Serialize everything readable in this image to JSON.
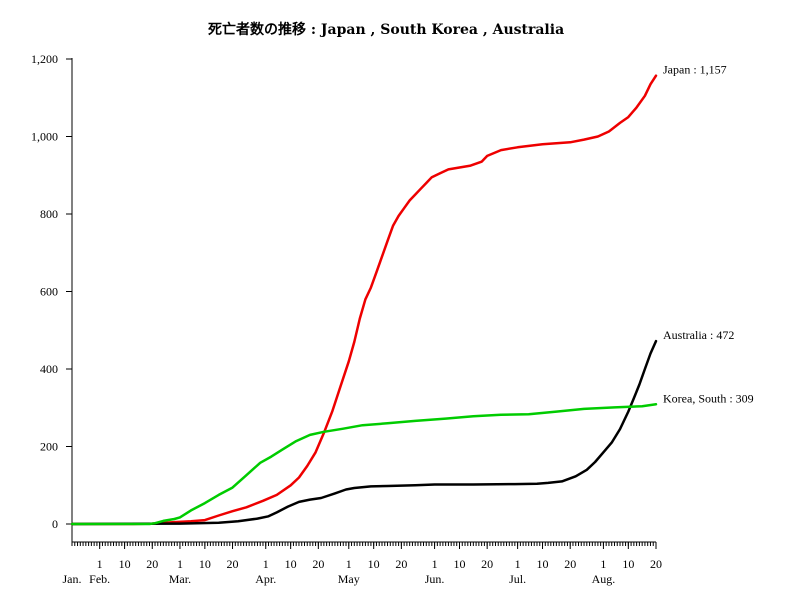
{
  "chart_data": {
    "type": "line",
    "title": "死亡者数の推移 : Japan , South Korea , Australia",
    "x_start": "2020-01-22",
    "x_end": "2020-08-20",
    "ylim": [
      0,
      1200
    ],
    "yticks": [
      0,
      200,
      400,
      600,
      800,
      1000,
      1200
    ],
    "ytick_labels": [
      "0",
      "200",
      "400",
      "600",
      "800",
      "1,000",
      "1,200"
    ],
    "month_labels": [
      {
        "date": "2020-01-22",
        "label": "Jan."
      },
      {
        "date": "2020-02-01",
        "label": "Feb."
      },
      {
        "date": "2020-03-01",
        "label": "Mar."
      },
      {
        "date": "2020-04-01",
        "label": "Apr."
      },
      {
        "date": "2020-05-01",
        "label": "May"
      },
      {
        "date": "2020-06-01",
        "label": "Jun."
      },
      {
        "date": "2020-07-01",
        "label": "Jul."
      },
      {
        "date": "2020-08-01",
        "label": "Aug."
      }
    ],
    "day_ticks": [
      {
        "date": "2020-02-01",
        "label": "1"
      },
      {
        "date": "2020-02-10",
        "label": "10"
      },
      {
        "date": "2020-02-20",
        "label": "20"
      },
      {
        "date": "2020-03-01",
        "label": "1"
      },
      {
        "date": "2020-03-10",
        "label": "10"
      },
      {
        "date": "2020-03-20",
        "label": "20"
      },
      {
        "date": "2020-04-01",
        "label": "1"
      },
      {
        "date": "2020-04-10",
        "label": "10"
      },
      {
        "date": "2020-04-20",
        "label": "20"
      },
      {
        "date": "2020-05-01",
        "label": "1"
      },
      {
        "date": "2020-05-10",
        "label": "10"
      },
      {
        "date": "2020-05-20",
        "label": "20"
      },
      {
        "date": "2020-06-01",
        "label": "1"
      },
      {
        "date": "2020-06-10",
        "label": "10"
      },
      {
        "date": "2020-06-20",
        "label": "20"
      },
      {
        "date": "2020-07-01",
        "label": "1"
      },
      {
        "date": "2020-07-10",
        "label": "10"
      },
      {
        "date": "2020-07-20",
        "label": "20"
      },
      {
        "date": "2020-08-01",
        "label": "1"
      },
      {
        "date": "2020-08-10",
        "label": "10"
      },
      {
        "date": "2020-08-20",
        "label": "20"
      }
    ],
    "series": [
      {
        "name": "Japan",
        "end_label": "Japan : 1,157",
        "color": "#ee0000",
        "points": [
          [
            "2020-01-22",
            0
          ],
          [
            "2020-02-13",
            0
          ],
          [
            "2020-02-20",
            1
          ],
          [
            "2020-02-28",
            5
          ],
          [
            "2020-03-05",
            7
          ],
          [
            "2020-03-10",
            10
          ],
          [
            "2020-03-15",
            22
          ],
          [
            "2020-03-20",
            33
          ],
          [
            "2020-03-25",
            43
          ],
          [
            "2020-03-31",
            60
          ],
          [
            "2020-04-05",
            75
          ],
          [
            "2020-04-10",
            100
          ],
          [
            "2020-04-13",
            120
          ],
          [
            "2020-04-16",
            150
          ],
          [
            "2020-04-19",
            185
          ],
          [
            "2020-04-22",
            235
          ],
          [
            "2020-04-25",
            290
          ],
          [
            "2020-04-28",
            355
          ],
          [
            "2020-05-01",
            420
          ],
          [
            "2020-05-03",
            470
          ],
          [
            "2020-05-05",
            530
          ],
          [
            "2020-05-07",
            580
          ],
          [
            "2020-05-09",
            610
          ],
          [
            "2020-05-11",
            650
          ],
          [
            "2020-05-13",
            690
          ],
          [
            "2020-05-15",
            730
          ],
          [
            "2020-05-17",
            770
          ],
          [
            "2020-05-19",
            795
          ],
          [
            "2020-05-21",
            815
          ],
          [
            "2020-05-23",
            835
          ],
          [
            "2020-05-25",
            850
          ],
          [
            "2020-05-27",
            865
          ],
          [
            "2020-05-29",
            880
          ],
          [
            "2020-05-31",
            895
          ],
          [
            "2020-06-03",
            905
          ],
          [
            "2020-06-06",
            915
          ],
          [
            "2020-06-10",
            920
          ],
          [
            "2020-06-14",
            925
          ],
          [
            "2020-06-18",
            935
          ],
          [
            "2020-06-20",
            950
          ],
          [
            "2020-06-25",
            965
          ],
          [
            "2020-07-01",
            972
          ],
          [
            "2020-07-10",
            980
          ],
          [
            "2020-07-20",
            985
          ],
          [
            "2020-07-25",
            992
          ],
          [
            "2020-07-30",
            1000
          ],
          [
            "2020-08-03",
            1013
          ],
          [
            "2020-08-07",
            1035
          ],
          [
            "2020-08-10",
            1050
          ],
          [
            "2020-08-13",
            1075
          ],
          [
            "2020-08-16",
            1105
          ],
          [
            "2020-08-18",
            1135
          ],
          [
            "2020-08-20",
            1157
          ]
        ]
      },
      {
        "name": "Australia",
        "end_label": "Australia : 472",
        "color": "#000000",
        "points": [
          [
            "2020-01-22",
            0
          ],
          [
            "2020-03-01",
            1
          ],
          [
            "2020-03-15",
            3
          ],
          [
            "2020-03-22",
            7
          ],
          [
            "2020-03-29",
            14
          ],
          [
            "2020-04-02",
            20
          ],
          [
            "2020-04-05",
            30
          ],
          [
            "2020-04-09",
            45
          ],
          [
            "2020-04-13",
            57
          ],
          [
            "2020-04-17",
            63
          ],
          [
            "2020-04-21",
            67
          ],
          [
            "2020-04-26",
            79
          ],
          [
            "2020-04-30",
            89
          ],
          [
            "2020-05-03",
            93
          ],
          [
            "2020-05-09",
            97
          ],
          [
            "2020-05-15",
            98
          ],
          [
            "2020-05-25",
            100
          ],
          [
            "2020-06-01",
            102
          ],
          [
            "2020-06-15",
            102
          ],
          [
            "2020-06-30",
            103
          ],
          [
            "2020-07-08",
            104
          ],
          [
            "2020-07-12",
            106
          ],
          [
            "2020-07-17",
            110
          ],
          [
            "2020-07-22",
            123
          ],
          [
            "2020-07-26",
            140
          ],
          [
            "2020-07-29",
            160
          ],
          [
            "2020-08-01",
            185
          ],
          [
            "2020-08-04",
            210
          ],
          [
            "2020-08-07",
            245
          ],
          [
            "2020-08-10",
            290
          ],
          [
            "2020-08-12",
            325
          ],
          [
            "2020-08-14",
            360
          ],
          [
            "2020-08-16",
            400
          ],
          [
            "2020-08-18",
            440
          ],
          [
            "2020-08-20",
            472
          ]
        ]
      },
      {
        "name": "Korea, South",
        "end_label": "Korea, South : 309",
        "color": "#00cc00",
        "points": [
          [
            "2020-01-22",
            0
          ],
          [
            "2020-02-19",
            0
          ],
          [
            "2020-02-21",
            2
          ],
          [
            "2020-02-24",
            8
          ],
          [
            "2020-02-28",
            13
          ],
          [
            "2020-03-01",
            17
          ],
          [
            "2020-03-05",
            35
          ],
          [
            "2020-03-10",
            54
          ],
          [
            "2020-03-15",
            75
          ],
          [
            "2020-03-20",
            94
          ],
          [
            "2020-03-25",
            126
          ],
          [
            "2020-03-30",
            158
          ],
          [
            "2020-04-03",
            174
          ],
          [
            "2020-04-07",
            192
          ],
          [
            "2020-04-12",
            214
          ],
          [
            "2020-04-17",
            230
          ],
          [
            "2020-04-22",
            238
          ],
          [
            "2020-04-29",
            246
          ],
          [
            "2020-05-06",
            255
          ],
          [
            "2020-05-15",
            260
          ],
          [
            "2020-05-25",
            266
          ],
          [
            "2020-06-05",
            272
          ],
          [
            "2020-06-15",
            278
          ],
          [
            "2020-06-25",
            282
          ],
          [
            "2020-07-05",
            283
          ],
          [
            "2020-07-15",
            290
          ],
          [
            "2020-07-25",
            297
          ],
          [
            "2020-08-05",
            301
          ],
          [
            "2020-08-15",
            304
          ],
          [
            "2020-08-20",
            309
          ]
        ]
      }
    ]
  }
}
